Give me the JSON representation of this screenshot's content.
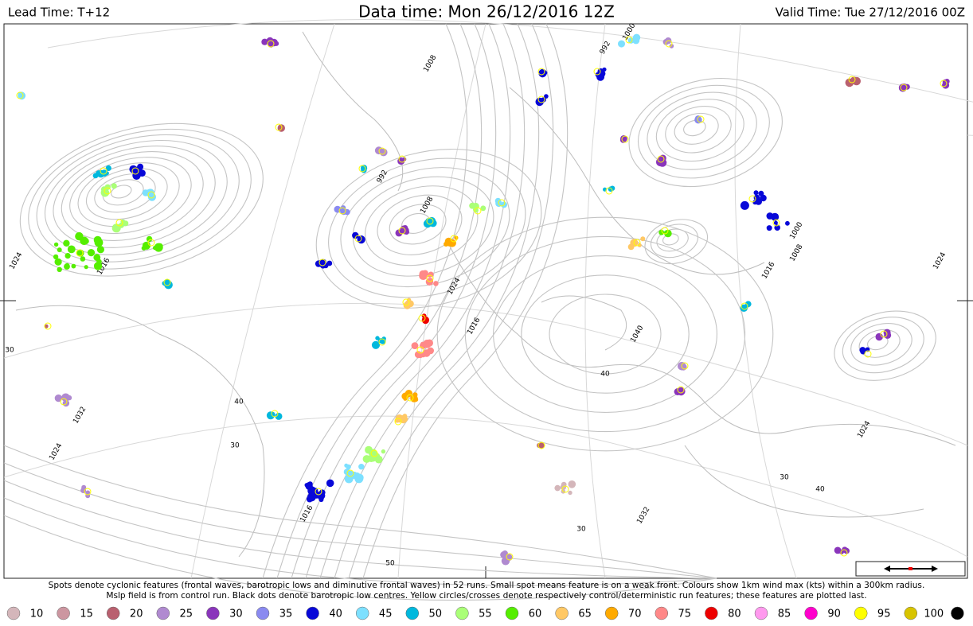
{
  "header": {
    "lead_time": "Lead Time: T+12",
    "data_time": "Data time:  Mon 26/12/2016 12Z",
    "valid_time": "Valid Time: Tue 27/12/2016 00Z"
  },
  "map": {
    "isobar_labels": [
      "1024",
      "1016",
      "992",
      "1008",
      "1000",
      "1008",
      "1016",
      "1024",
      "1040",
      "992",
      "1000",
      "1008",
      "1016",
      "1024",
      "1032",
      "1024",
      "1016",
      "1032",
      "1024"
    ],
    "graticule_labels": [
      "40",
      "30",
      "40",
      "30",
      "40",
      "30",
      "30",
      "50"
    ]
  },
  "footnote": [
    "Spots denote cyclonic features (frontal waves, barotropic lows and diminutive frontal waves) in 52 runs. Small spot means feature is on a weak front. Colours show 1km wind max (kts) within a 300km radius.",
    "Mslp field is from control run. Black dots denote barotropic low centres. Yellow circles/crosses denote respectively control/deterministic run features; these features are plotted last."
  ],
  "legend": {
    "items": [
      {
        "label": 10,
        "color": "#d4b6ba"
      },
      {
        "label": 15,
        "color": "#cc96a0"
      },
      {
        "label": 20,
        "color": "#b9606f"
      },
      {
        "label": 25,
        "color": "#b08ad0"
      },
      {
        "label": 30,
        "color": "#8a35bb"
      },
      {
        "label": 35,
        "color": "#8a8af0"
      },
      {
        "label": 40,
        "color": "#0808d8"
      },
      {
        "label": 45,
        "color": "#7de0ff"
      },
      {
        "label": 50,
        "color": "#00b8dd"
      },
      {
        "label": 55,
        "color": "#aaff77"
      },
      {
        "label": 60,
        "color": "#55ee00"
      },
      {
        "label": 65,
        "color": "#ffc865"
      },
      {
        "label": 70,
        "color": "#ffaa00"
      },
      {
        "label": 75,
        "color": "#ff8888"
      },
      {
        "label": 80,
        "color": "#ee0000"
      },
      {
        "label": 85,
        "color": "#ff99ee"
      },
      {
        "label": 90,
        "color": "#ff00cc"
      },
      {
        "label": 95,
        "color": "#ffff00"
      },
      {
        "label": 100,
        "color": "#d8c400"
      },
      {
        "label": null,
        "color": "#000000"
      }
    ]
  }
}
